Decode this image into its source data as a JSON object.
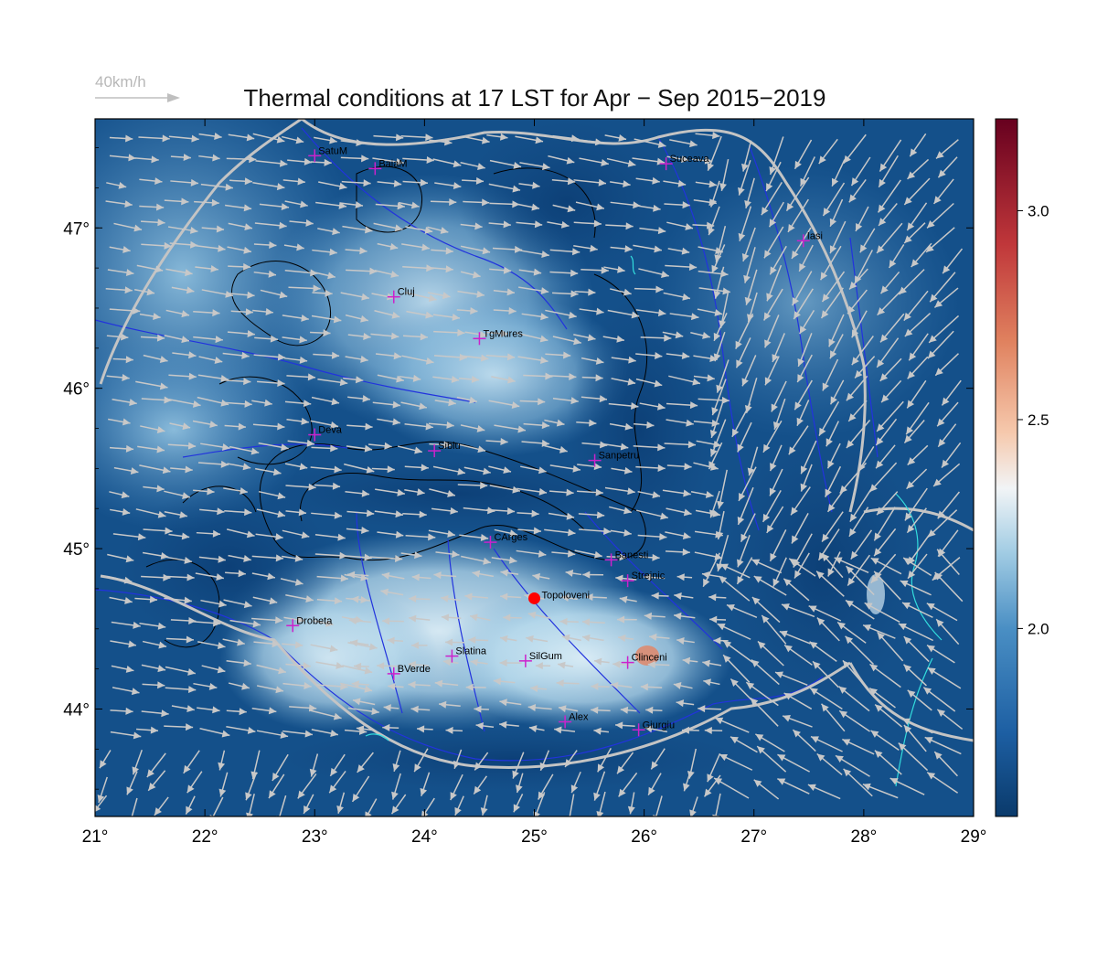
{
  "title": "Thermal conditions at 17 LST for Apr − Sep  2015−2019",
  "wind_scale": {
    "label": "40km/h",
    "color": "#bfbfbf"
  },
  "map": {
    "lon_range": [
      21,
      29
    ],
    "lat_range": [
      43.33,
      47.68
    ],
    "lon_ticks": [
      "21°",
      "22°",
      "23°",
      "24°",
      "25°",
      "26°",
      "27°",
      "28°",
      "29°"
    ],
    "lat_ticks": [
      "44°",
      "45°",
      "46°",
      "47°"
    ],
    "grid": false,
    "colorbar": {
      "range": [
        1.55,
        3.22
      ],
      "tick_labels": [
        "2.0",
        "2.5",
        "3.0"
      ],
      "tick_values": [
        2.0,
        2.5,
        3.0
      ],
      "colormap": "RdBu_r"
    },
    "colors": {
      "contour": "#000000",
      "rivers": "#2233dd",
      "borders": "#c4c4c4",
      "lakes": "#33dddd",
      "wind_arrows": "#c8c8c8",
      "stations": "#cc22cc",
      "highlight": "#ff0000"
    },
    "stations": [
      {
        "name": "SatuM",
        "lon": 23.0,
        "lat": 47.45
      },
      {
        "name": "BaiaM",
        "lon": 23.55,
        "lat": 47.37
      },
      {
        "name": "Suceava",
        "lon": 26.2,
        "lat": 47.4
      },
      {
        "name": "Iasi",
        "lon": 27.45,
        "lat": 46.92
      },
      {
        "name": "Cluj",
        "lon": 23.72,
        "lat": 46.57
      },
      {
        "name": "TgMures",
        "lon": 24.5,
        "lat": 46.31
      },
      {
        "name": "Deva",
        "lon": 23.0,
        "lat": 45.71
      },
      {
        "name": "Sibiu",
        "lon": 24.09,
        "lat": 45.61
      },
      {
        "name": "Sanpetru",
        "lon": 25.55,
        "lat": 45.55
      },
      {
        "name": "CArges",
        "lon": 24.6,
        "lat": 45.04
      },
      {
        "name": "Banesti",
        "lon": 25.7,
        "lat": 44.93
      },
      {
        "name": "Strejnic",
        "lon": 25.85,
        "lat": 44.8
      },
      {
        "name": "Drobeta",
        "lon": 22.8,
        "lat": 44.52
      },
      {
        "name": "Slatina",
        "lon": 24.25,
        "lat": 44.33
      },
      {
        "name": "SilGum",
        "lon": 24.92,
        "lat": 44.3
      },
      {
        "name": "Clinceni",
        "lon": 25.85,
        "lat": 44.29
      },
      {
        "name": "BVerde",
        "lon": 23.72,
        "lat": 44.22
      },
      {
        "name": "Alex",
        "lon": 25.28,
        "lat": 43.92
      },
      {
        "name": "Giurgiu",
        "lon": 25.95,
        "lat": 43.87
      }
    ],
    "highlight_station": {
      "name": "Topoloveni",
      "lon": 25.0,
      "lat": 44.69
    }
  }
}
